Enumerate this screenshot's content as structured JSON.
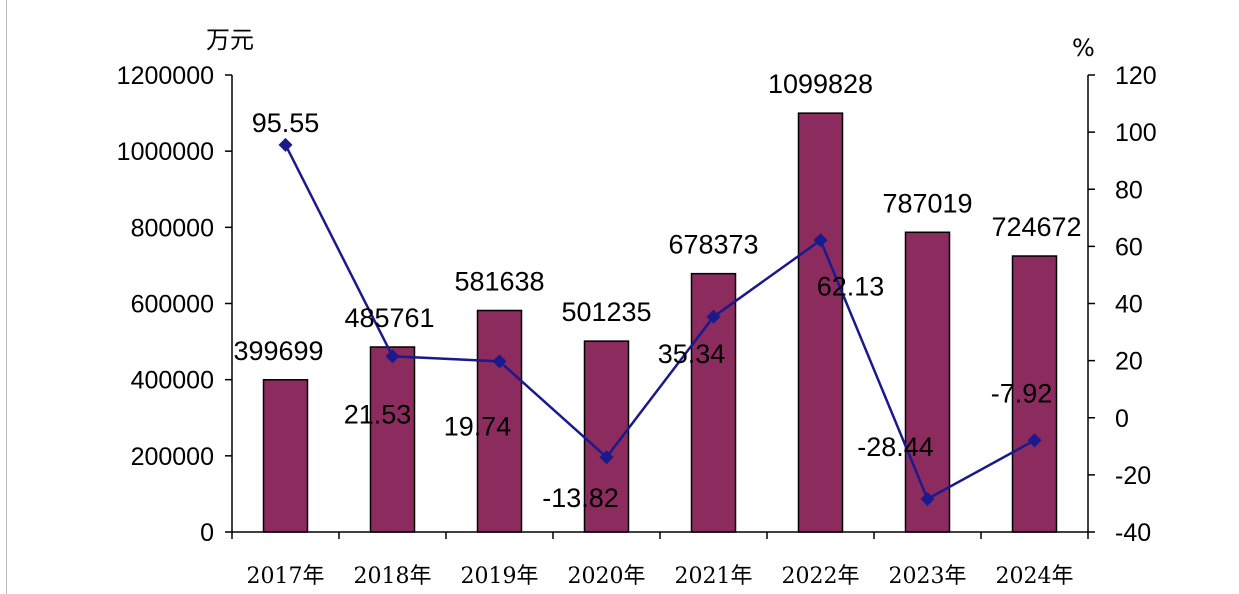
{
  "chart_data": {
    "type": "bar",
    "title": "",
    "categories": [
      "2017年",
      "2018年",
      "2019年",
      "2020年",
      "2021年",
      "2022年",
      "2023年",
      "2024年"
    ],
    "series": [
      {
        "type": "bar",
        "axis": "left",
        "values": [
          399699,
          485761,
          581638,
          501235,
          678373,
          1099828,
          787019,
          724672
        ]
      },
      {
        "type": "line",
        "axis": "right",
        "values": [
          95.55,
          21.53,
          19.74,
          -13.82,
          35.34,
          62.13,
          -28.44,
          -7.92
        ]
      }
    ],
    "ylabel": "万元",
    "ylim": [
      0,
      1200000
    ],
    "yticks": [
      "0",
      "200000",
      "400000",
      "600000",
      "800000",
      "1000000",
      "1200000"
    ],
    "y2label": "%",
    "y2lim": [
      -40,
      120
    ],
    "y2ticks": [
      "-40",
      "-20",
      "0",
      "20",
      "40",
      "60",
      "80",
      "100",
      "120"
    ],
    "grid": false,
    "colors": {
      "bar": "#8b2b5e",
      "bar_edge": "#000000",
      "line": "#1a1a8c",
      "marker": "#1a1a8c"
    }
  }
}
